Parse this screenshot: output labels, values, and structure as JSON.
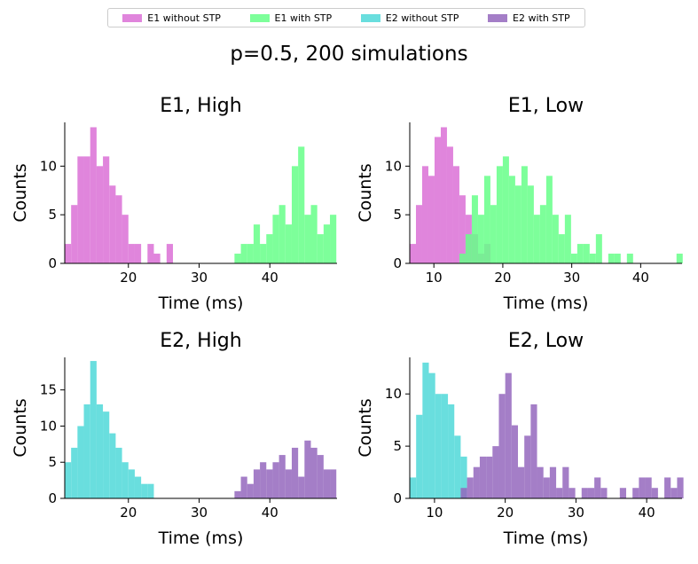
{
  "suptitle": "p=0.5, 200 simulations",
  "legend": [
    {
      "label": "E1 without STP",
      "color": "#DA70D6"
    },
    {
      "label": "E1 with STP",
      "color": "#66FF88"
    },
    {
      "label": "E2 without STP",
      "color": "#4FD8D8"
    },
    {
      "label": "E2 with STP",
      "color": "#9467BD"
    }
  ],
  "chart_data": [
    {
      "type": "bar",
      "title": "E1, High",
      "xlabel": "Time (ms)",
      "ylabel": "Counts",
      "xlim": [
        11,
        49.5
      ],
      "ylim": [
        0,
        14.5
      ],
      "xticks": [
        20,
        30,
        40
      ],
      "yticks": [
        0,
        5,
        10
      ],
      "bin_width": 0.9,
      "series": [
        {
          "name": "E1 without STP",
          "color": "#DA70D6",
          "x": [
            11.45,
            12.35,
            13.25,
            14.15,
            15.05,
            15.95,
            16.85,
            17.75,
            18.65,
            19.55,
            20.45,
            21.35,
            22.25,
            23.15,
            24.05,
            24.95,
            25.85
          ],
          "values": [
            2,
            6,
            11,
            11,
            14,
            10,
            11,
            8,
            7,
            5,
            2,
            2,
            0,
            2,
            1,
            0,
            2
          ]
        },
        {
          "name": "E1 with STP",
          "color": "#66FF88",
          "x": [
            35.45,
            36.35,
            37.25,
            38.15,
            39.05,
            39.95,
            40.85,
            41.75,
            42.65,
            43.55,
            44.45,
            45.35,
            46.25,
            47.15,
            48.05,
            48.95
          ],
          "values": [
            1,
            2,
            2,
            4,
            2,
            3,
            5,
            6,
            4,
            10,
            12,
            5,
            6,
            3,
            4,
            5
          ]
        }
      ]
    },
    {
      "type": "bar",
      "title": "E1, Low",
      "xlabel": "Time (ms)",
      "ylabel": "Counts",
      "xlim": [
        6.5,
        46
      ],
      "ylim": [
        0,
        14.5
      ],
      "xticks": [
        10,
        20,
        30,
        40
      ],
      "yticks": [
        0,
        5,
        10
      ],
      "bin_width": 0.9,
      "series": [
        {
          "name": "E1 without STP",
          "color": "#DA70D6",
          "x": [
            6.95,
            7.85,
            8.75,
            9.65,
            10.55,
            11.45,
            12.35,
            13.25,
            14.15,
            15.05,
            15.95,
            16.85,
            17.75
          ],
          "values": [
            2,
            6,
            10,
            9,
            13,
            14,
            12,
            10,
            7,
            5,
            3,
            1,
            2
          ]
        },
        {
          "name": "E1 with STP",
          "color": "#66FF88",
          "x": [
            14.15,
            15.05,
            15.95,
            16.85,
            17.75,
            18.65,
            19.55,
            20.45,
            21.35,
            22.25,
            23.15,
            24.05,
            24.95,
            25.85,
            26.75,
            27.65,
            28.55,
            29.45,
            30.35,
            31.25,
            32.15,
            33.05,
            33.95,
            34.85,
            35.75,
            36.65,
            37.55,
            38.45,
            39.35,
            40.25,
            41.15,
            42.05,
            42.95,
            43.85,
            44.75,
            45.65
          ],
          "values": [
            1,
            3,
            7,
            5,
            9,
            6,
            10,
            11,
            9,
            8,
            10,
            8,
            5,
            6,
            9,
            5,
            3,
            5,
            1,
            2,
            2,
            1,
            3,
            0,
            1,
            1,
            0,
            1,
            0,
            0,
            0,
            0,
            0,
            0,
            0,
            1
          ]
        }
      ]
    },
    {
      "type": "bar",
      "title": "E2, High",
      "xlabel": "Time (ms)",
      "ylabel": "Counts",
      "xlim": [
        11,
        49.5
      ],
      "ylim": [
        0,
        19.5
      ],
      "xticks": [
        20,
        30,
        40
      ],
      "yticks": [
        0,
        5,
        10,
        15
      ],
      "bin_width": 0.9,
      "series": [
        {
          "name": "E2 without STP",
          "color": "#4FD8D8",
          "x": [
            11.45,
            12.35,
            13.25,
            14.15,
            15.05,
            15.95,
            16.85,
            17.75,
            18.65,
            19.55,
            20.45,
            21.35,
            22.25,
            23.15
          ],
          "values": [
            5,
            7,
            10,
            13,
            19,
            13,
            12,
            9,
            7,
            5,
            4,
            3,
            2,
            2
          ]
        },
        {
          "name": "E2 with STP",
          "color": "#9467BD",
          "x": [
            35.45,
            36.35,
            37.25,
            38.15,
            39.05,
            39.95,
            40.85,
            41.75,
            42.65,
            43.55,
            44.45,
            45.35,
            46.25,
            47.15,
            48.05,
            48.95
          ],
          "values": [
            1,
            3,
            2,
            4,
            5,
            4,
            5,
            6,
            4,
            7,
            3,
            8,
            7,
            6,
            4,
            4
          ]
        }
      ]
    },
    {
      "type": "bar",
      "title": "E2, Low",
      "xlabel": "Time (ms)",
      "ylabel": "Counts",
      "xlim": [
        6.5,
        45
      ],
      "ylim": [
        0,
        13.5
      ],
      "xticks": [
        10,
        20,
        30,
        40
      ],
      "yticks": [
        0,
        5,
        10
      ],
      "bin_width": 0.9,
      "series": [
        {
          "name": "E2 without STP",
          "color": "#4FD8D8",
          "x": [
            6.95,
            7.85,
            8.75,
            9.65,
            10.55,
            11.45,
            12.35,
            13.25,
            14.15
          ],
          "values": [
            2,
            8,
            13,
            12,
            10,
            10,
            9,
            6,
            4
          ]
        },
        {
          "name": "E2 with STP",
          "color": "#9467BD",
          "x": [
            14.15,
            15.05,
            15.95,
            16.85,
            17.75,
            18.65,
            19.55,
            20.45,
            21.35,
            22.25,
            23.15,
            24.05,
            24.95,
            25.85,
            26.75,
            27.65,
            28.55,
            29.45,
            30.35,
            31.25,
            32.15,
            33.05,
            33.95,
            34.85,
            35.75,
            36.65,
            37.55,
            38.45,
            39.35,
            40.25,
            41.15,
            42.05,
            42.95,
            43.85,
            44.75
          ],
          "values": [
            1,
            2,
            3,
            4,
            4,
            5,
            10,
            12,
            7,
            3,
            6,
            9,
            3,
            2,
            3,
            1,
            3,
            1,
            0,
            1,
            1,
            2,
            1,
            0,
            0,
            1,
            0,
            1,
            2,
            2,
            1,
            0,
            2,
            1,
            2
          ]
        }
      ]
    }
  ]
}
